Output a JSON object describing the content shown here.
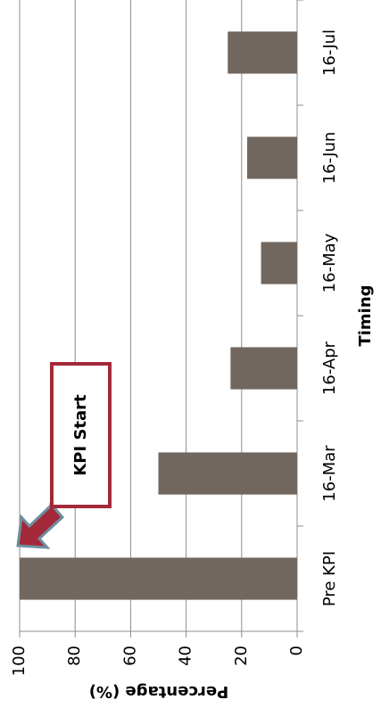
{
  "chart_data": {
    "type": "bar",
    "x_label": "Timing",
    "y_label": "Percentage (%)",
    "categories": [
      "Pre KPI",
      "16-Mar",
      "16-Apr",
      "16-May",
      "16-Jun",
      "16-Jul"
    ],
    "values": [
      100,
      50,
      24,
      13,
      18,
      25
    ],
    "color": "#72675f",
    "ylim": [
      0,
      100
    ],
    "yticks": [
      0,
      20,
      40,
      60,
      80,
      100
    ],
    "grid": true,
    "annotation": "KPI Start"
  }
}
